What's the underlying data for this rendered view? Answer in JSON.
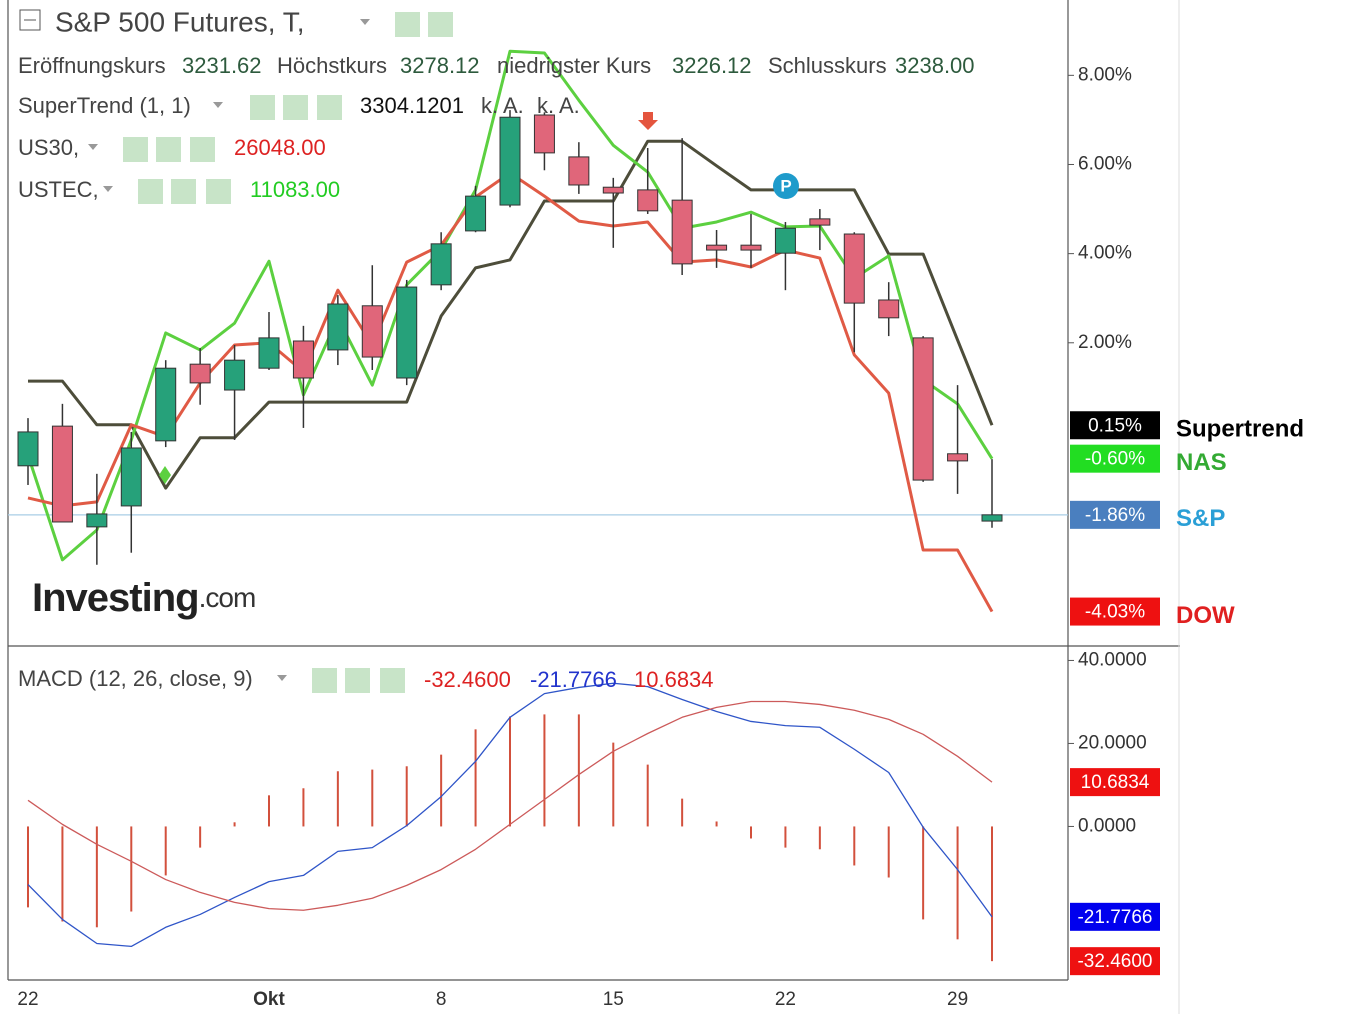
{
  "chart_data": [
    {
      "type": "candlestick",
      "title": "S&P 500 Futures, T,",
      "ohlc": [
        {
          "label": "Eröffnungskurs",
          "value": "3231.62"
        },
        {
          "label": "Höchstkurs",
          "value": "3278.12"
        },
        {
          "label": "niedrigster Kurs",
          "value": "3226.12"
        },
        {
          "label": "Schlusskurs",
          "value": "3238.00"
        }
      ],
      "indicators": [
        {
          "name": "SuperTrend (1, 1)",
          "readouts": [
            "3304.1201",
            "k. A.",
            "k. A."
          ]
        },
        {
          "name": "US30,",
          "readouts": [
            "26048.00"
          ]
        },
        {
          "name": "USTEC,",
          "readouts": [
            "11083.00"
          ]
        }
      ],
      "watermark": {
        "brand": "Investing",
        "suffix": ".com"
      },
      "event_marker": "P",
      "categories": [
        "22",
        null,
        null,
        null,
        null,
        null,
        null,
        "Okt",
        null,
        null,
        null,
        null,
        "8",
        null,
        null,
        null,
        null,
        "15",
        null,
        null,
        null,
        null,
        "22",
        null,
        null,
        null,
        null,
        "29",
        null
      ],
      "ylim": [
        -4.78,
        9.69
      ],
      "yticks": [
        {
          "value": 2,
          "label": "2.00%"
        },
        {
          "value": 4,
          "label": "4.00%"
        },
        {
          "value": 6,
          "label": "6.00%"
        },
        {
          "value": 8,
          "label": "8.00%"
        }
      ],
      "candles": {
        "name": "S&P",
        "up_color": "#26a17a",
        "down_color": "#e0667a",
        "tag_color": "#4a7fbf",
        "label_color": "#2a9fd6",
        "price_line_color": "#a9cde6",
        "open": [
          -0.76,
          0.13,
          -2.13,
          -1.66,
          -0.2,
          1.52,
          0.94,
          1.43,
          2.04,
          1.84,
          2.83,
          1.21,
          3.3,
          4.51,
          5.09,
          7.11,
          6.17,
          5.49,
          5.43,
          5.2,
          4.19,
          4.19,
          4.01,
          4.78,
          4.44,
          2.96,
          2.11,
          -0.49,
          -2.0
        ],
        "high": [
          0.31,
          0.63,
          -0.94,
          0.0,
          1.61,
          1.88,
          1.95,
          2.69,
          2.38,
          3.07,
          3.74,
          3.41,
          4.48,
          5.52,
          7.22,
          7.17,
          6.5,
          5.7,
          6.37,
          6.59,
          4.53,
          4.89,
          4.71,
          5.0,
          4.48,
          3.36,
          2.15,
          1.05,
          -0.61
        ],
        "low": [
          -1.19,
          -2.02,
          -2.98,
          -2.71,
          -0.34,
          0.61,
          -0.18,
          1.39,
          0.09,
          1.5,
          1.39,
          1.05,
          3.18,
          4.48,
          5.04,
          5.87,
          5.34,
          4.13,
          4.89,
          3.52,
          3.68,
          3.68,
          3.18,
          4.08,
          1.79,
          2.15,
          -1.12,
          -1.39,
          -2.15
        ],
        "values": [
          0.0,
          -2.02,
          -1.84,
          -0.36,
          1.43,
          1.1,
          1.61,
          2.11,
          1.21,
          2.87,
          1.68,
          3.25,
          4.22,
          5.29,
          7.06,
          6.26,
          5.54,
          5.36,
          4.96,
          3.77,
          4.08,
          4.08,
          4.57,
          4.64,
          2.89,
          2.56,
          -1.08,
          -0.65,
          -1.86
        ],
        "value_labels": [
          null,
          null,
          null,
          null,
          null,
          null,
          null,
          null,
          null,
          null,
          null,
          null,
          null,
          null,
          null,
          null,
          null,
          null,
          null,
          null,
          null,
          null,
          null,
          null,
          null,
          null,
          null,
          null,
          "-1.86%"
        ]
      },
      "series": [
        {
          "name": "Supertrend",
          "type": "line",
          "color": "#4d4d3a",
          "tag_color": "#000000",
          "label_color": "#000000",
          "values": [
            1.14,
            1.14,
            0.16,
            0.16,
            -1.26,
            -0.13,
            -0.13,
            0.67,
            0.67,
            0.67,
            0.67,
            0.67,
            2.6,
            3.68,
            3.86,
            5.18,
            5.18,
            5.18,
            6.52,
            6.52,
            5.97,
            5.43,
            5.43,
            5.43,
            5.43,
            3.99,
            3.99,
            2.06,
            0.15
          ],
          "value_labels": [
            null,
            null,
            null,
            null,
            null,
            null,
            null,
            null,
            null,
            null,
            null,
            null,
            null,
            null,
            null,
            null,
            null,
            null,
            null,
            null,
            null,
            null,
            null,
            null,
            null,
            null,
            null,
            null,
            "0.15%"
          ]
        },
        {
          "name": "NAS",
          "type": "line",
          "color": "#5cd040",
          "tag_color": "#22dd22",
          "label_color": "#33aa33",
          "values": [
            -0.52,
            -2.87,
            -2.2,
            -0.18,
            2.22,
            1.84,
            2.44,
            3.83,
            0.83,
            2.56,
            1.05,
            3.3,
            4.08,
            5.43,
            8.54,
            8.5,
            7.44,
            6.43,
            5.83,
            4.57,
            4.71,
            4.93,
            4.6,
            4.62,
            3.45,
            3.95,
            1.17,
            0.63,
            -0.6
          ],
          "value_labels": [
            null,
            null,
            null,
            null,
            null,
            null,
            null,
            null,
            null,
            null,
            null,
            null,
            null,
            null,
            null,
            null,
            null,
            null,
            null,
            null,
            null,
            null,
            null,
            null,
            null,
            null,
            null,
            null,
            "-0.60%"
          ]
        },
        {
          "name": "DOW",
          "type": "line",
          "color": "#e05a45",
          "tag_color": "#ee1111",
          "label_color": "#e02020",
          "values": [
            -1.48,
            -1.66,
            -1.57,
            0.16,
            -0.11,
            1.1,
            1.95,
            2.0,
            1.35,
            3.18,
            1.95,
            3.81,
            4.19,
            5.27,
            5.81,
            5.29,
            4.73,
            4.62,
            4.71,
            3.81,
            3.86,
            3.7,
            4.08,
            3.9,
            1.73,
            0.87,
            -2.65,
            -2.65,
            -4.03
          ],
          "value_labels": [
            null,
            null,
            null,
            null,
            null,
            null,
            null,
            null,
            null,
            null,
            null,
            null,
            null,
            null,
            null,
            null,
            null,
            null,
            null,
            null,
            null,
            null,
            null,
            null,
            null,
            null,
            null,
            null,
            "-4.03%"
          ]
        }
      ]
    },
    {
      "type": "macd",
      "title": "MACD (12, 26, close, 9)",
      "ylim": [
        -37,
        43
      ],
      "yticks": [
        {
          "value": 0,
          "label": "0.0000"
        },
        {
          "value": 20,
          "label": "20.0000"
        },
        {
          "value": 40,
          "label": "40.0000"
        }
      ],
      "series": [
        {
          "type": "bar",
          "color": "#d2503c",
          "tag_color": "#ee1111",
          "values": [
            -19.5,
            -22.9,
            -24.3,
            -20.5,
            -11.8,
            -5.1,
            1.0,
            7.5,
            9.2,
            13.3,
            13.7,
            14.5,
            17.3,
            23.4,
            26.5,
            27.0,
            27.0,
            20.2,
            14.9,
            6.7,
            1.2,
            -2.9,
            -5.1,
            -5.5,
            -9.4,
            -12.3,
            -22.4,
            -27.2,
            -32.46
          ],
          "value_labels": [
            null,
            null,
            null,
            null,
            null,
            null,
            null,
            null,
            null,
            null,
            null,
            null,
            null,
            null,
            null,
            null,
            null,
            null,
            null,
            null,
            null,
            null,
            null,
            null,
            null,
            null,
            null,
            null,
            "-32.4600"
          ]
        },
        {
          "type": "line",
          "color": "#2f55c8",
          "tag_color": "#0000ee",
          "values": [
            -14.0,
            -22.4,
            -28.2,
            -28.9,
            -24.3,
            -21.2,
            -17.1,
            -13.3,
            -11.8,
            -6.0,
            -5.1,
            0.2,
            7.2,
            15.7,
            26.3,
            32.0,
            33.5,
            34.5,
            33.7,
            30.6,
            27.7,
            25.3,
            24.3,
            23.9,
            18.6,
            13.0,
            -0.2,
            -10.4,
            -21.7766
          ],
          "value_labels": [
            null,
            null,
            null,
            null,
            null,
            null,
            null,
            null,
            null,
            null,
            null,
            null,
            null,
            null,
            null,
            null,
            null,
            null,
            null,
            null,
            null,
            null,
            null,
            null,
            null,
            null,
            null,
            null,
            "-21.7766"
          ]
        },
        {
          "type": "line",
          "color": "#cc5a5a",
          "tag_color": "#ee1111",
          "values": [
            6.3,
            0.5,
            -4.3,
            -8.4,
            -12.8,
            -15.9,
            -18.3,
            -19.8,
            -20.2,
            -19.0,
            -17.3,
            -14.2,
            -10.4,
            -5.5,
            0.5,
            6.5,
            12.5,
            18.1,
            22.4,
            26.3,
            28.7,
            30.1,
            30.1,
            29.4,
            28.0,
            25.8,
            22.2,
            16.9,
            10.6834
          ],
          "value_labels": [
            null,
            null,
            null,
            null,
            null,
            null,
            null,
            null,
            null,
            null,
            null,
            null,
            null,
            null,
            null,
            null,
            null,
            null,
            null,
            null,
            null,
            null,
            null,
            null,
            null,
            null,
            null,
            null,
            "10.6834"
          ]
        }
      ]
    }
  ]
}
